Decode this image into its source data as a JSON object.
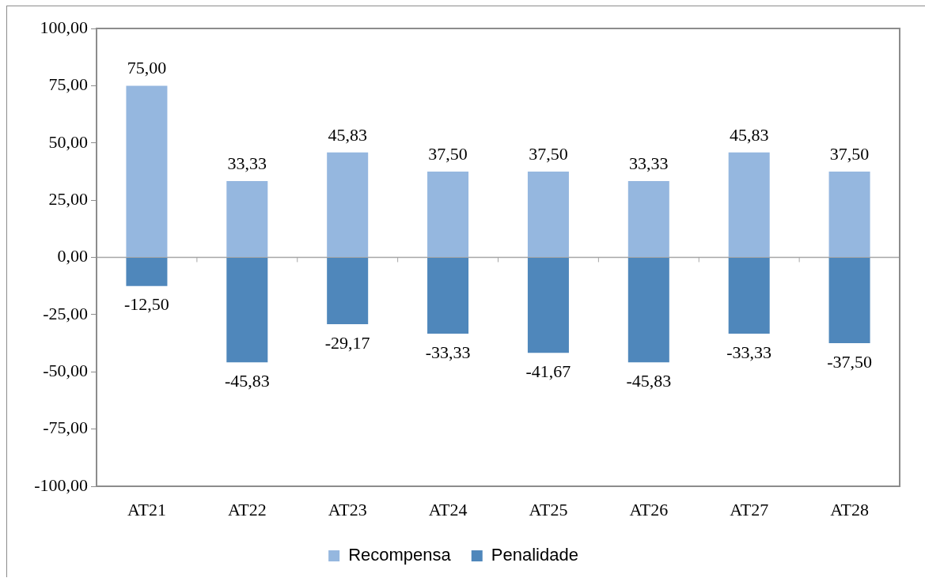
{
  "chart_data": {
    "type": "bar",
    "categories": [
      "AT21",
      "AT22",
      "AT23",
      "AT24",
      "AT25",
      "AT26",
      "AT27",
      "AT28"
    ],
    "stacked": true,
    "series": [
      {
        "name": "Recompensa",
        "color": "#95b7df",
        "values": [
          75,
          33.33,
          45.83,
          37.5,
          37.5,
          33.33,
          45.83,
          37.5
        ],
        "value_labels": [
          "75,00",
          "33,33",
          "45,83",
          "37,50",
          "37,50",
          "33,33",
          "45,83",
          "37,50"
        ]
      },
      {
        "name": "Penalidade",
        "color": "#4f87bb",
        "values": [
          -12.5,
          -45.83,
          -29.17,
          -33.33,
          -41.67,
          -45.83,
          -33.33,
          -37.5
        ],
        "value_labels": [
          "-12,50",
          "-45,83",
          "-29,17",
          "-33,33",
          "-41,67",
          "-45,83",
          "-33,33",
          "-37,50"
        ]
      }
    ],
    "ylim": [
      -100,
      100
    ],
    "yticks": [
      {
        "value": -100,
        "label": "-100,00"
      },
      {
        "value": -75,
        "label": "-75,00"
      },
      {
        "value": -50,
        "label": "-50,00"
      },
      {
        "value": -25,
        "label": "-25,00"
      },
      {
        "value": 0,
        "label": "0,00"
      },
      {
        "value": 25,
        "label": "25,00"
      },
      {
        "value": 50,
        "label": "50,00"
      },
      {
        "value": 75,
        "label": "75,00"
      },
      {
        "value": 100,
        "label": "100,00"
      }
    ],
    "ref_lines": [
      {
        "axis": "y",
        "value": 0,
        "color": "#a6a6a6"
      }
    ],
    "grid": false,
    "legend": "bottom"
  }
}
